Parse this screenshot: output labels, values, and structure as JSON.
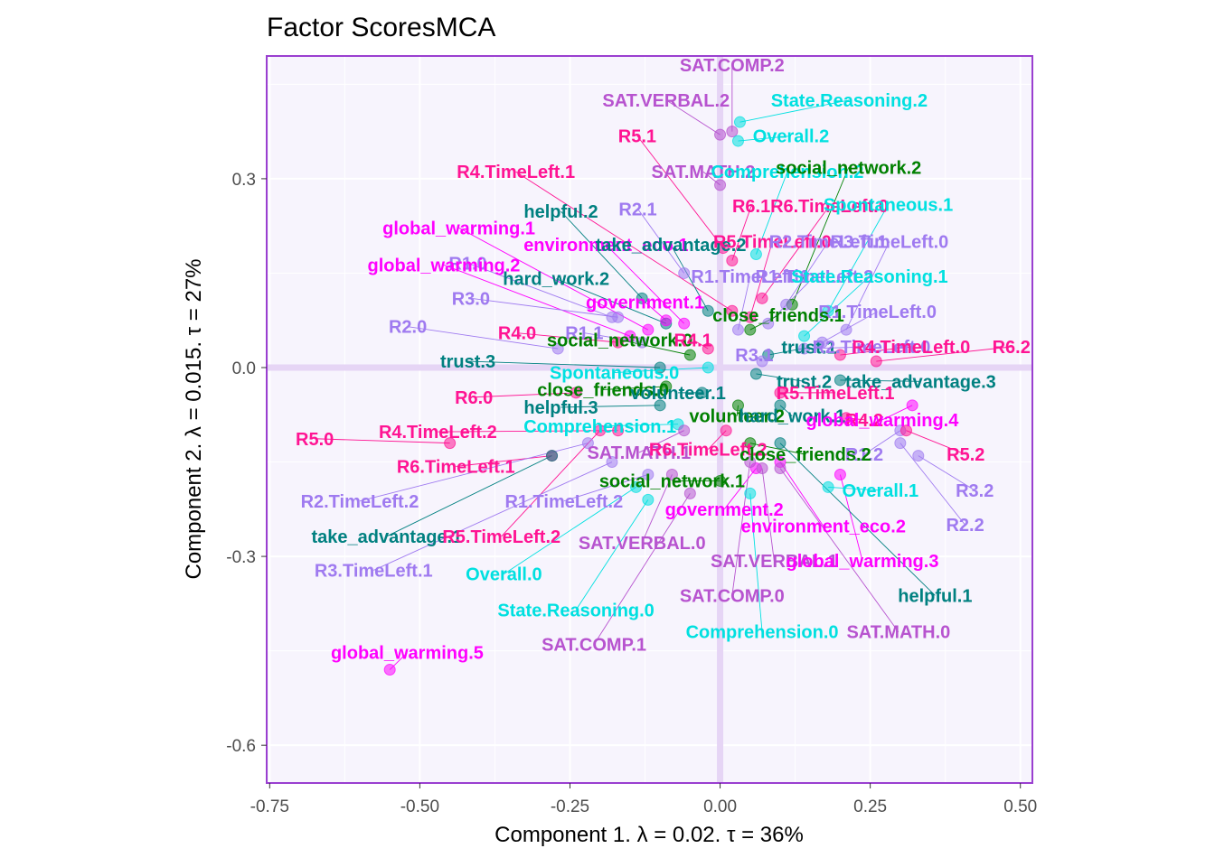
{
  "chart_data": {
    "type": "scatter",
    "title": "Factor ScoresMCA",
    "xlabel": "Component 1.   λ = 0.02.  τ = 36%",
    "ylabel": "Component 2.   λ = 0.015.  τ = 27%",
    "xlim": [
      -0.755,
      0.52
    ],
    "ylim": [
      -0.66,
      0.495
    ],
    "xticks": [
      -0.75,
      -0.5,
      -0.25,
      0.0,
      0.25,
      0.5
    ],
    "xtick_labels": [
      "-0.75",
      "-0.50",
      "-0.25",
      "0.00",
      "0.25",
      "0.50"
    ],
    "yticks": [
      0.3,
      0.0,
      -0.3,
      -0.6
    ],
    "ytick_labels": [
      "0.3",
      "0.0",
      "-0.3",
      "-0.6"
    ],
    "grid": true,
    "legend": "none",
    "colors": {
      "panel_bg": "#f7f4fd",
      "panel_border": "#9a3fd0",
      "grid": "#ffffff",
      "zero_line": "#e6d5f5",
      "sat": "#b753cf",
      "state": "#00e0e0",
      "r": "#ff1493",
      "rtl": "#9f7af0",
      "teal": "#008080",
      "green": "#008000",
      "mag": "#ff00ff"
    },
    "points": [
      {
        "label": "SAT.COMP.2",
        "x": 0.02,
        "y": 0.375,
        "lx": 0.02,
        "ly": 0.481,
        "c": "sat"
      },
      {
        "label": "SAT.VERBAL.2",
        "x": 0.0,
        "y": 0.37,
        "lx": -0.09,
        "ly": 0.425,
        "c": "sat"
      },
      {
        "label": "State.Reasoning.2",
        "x": 0.033,
        "y": 0.39,
        "lx": 0.215,
        "ly": 0.425,
        "c": "state"
      },
      {
        "label": "Overall.2",
        "x": 0.03,
        "y": 0.36,
        "lx": 0.118,
        "ly": 0.368,
        "c": "state"
      },
      {
        "label": "R5.1",
        "x": 0.005,
        "y": 0.19,
        "lx": -0.138,
        "ly": 0.368,
        "c": "r"
      },
      {
        "label": "R4.TimeLeft.1",
        "x": 0.02,
        "y": 0.09,
        "lx": -0.34,
        "ly": 0.311,
        "c": "r"
      },
      {
        "label": "SAT.MATH.2",
        "x": 0.0,
        "y": 0.29,
        "lx": -0.028,
        "ly": 0.311,
        "c": "sat"
      },
      {
        "label": "Comprehension.2",
        "x": 0.06,
        "y": 0.18,
        "lx": 0.112,
        "ly": 0.311,
        "c": "state"
      },
      {
        "label": "social_network.2",
        "x": 0.12,
        "y": 0.1,
        "lx": 0.214,
        "ly": 0.318,
        "c": "green"
      },
      {
        "label": "helpful.2",
        "x": -0.13,
        "y": 0.11,
        "lx": -0.265,
        "ly": 0.248,
        "c": "teal"
      },
      {
        "label": "R2.1",
        "x": -0.06,
        "y": 0.15,
        "lx": -0.137,
        "ly": 0.252,
        "c": "rtl"
      },
      {
        "label": "R6.1",
        "x": 0.02,
        "y": 0.17,
        "lx": 0.052,
        "ly": 0.257,
        "c": "r"
      },
      {
        "label": "R6.TimeLeft.0",
        "x": 0.07,
        "y": 0.11,
        "lx": 0.182,
        "ly": 0.257,
        "c": "r"
      },
      {
        "label": "Spontaneous.1",
        "x": 0.18,
        "y": 0.09,
        "lx": 0.28,
        "ly": 0.259,
        "c": "state"
      },
      {
        "label": "global_warming.1",
        "x": -0.12,
        "y": 0.06,
        "lx": -0.435,
        "ly": 0.222,
        "c": "mag"
      },
      {
        "label": "environment_eco.1",
        "x": -0.06,
        "y": 0.07,
        "lx": -0.19,
        "ly": 0.195,
        "c": "mag"
      },
      {
        "label": "take_advantage.2",
        "x": -0.02,
        "y": 0.09,
        "lx": -0.082,
        "ly": 0.195,
        "c": "teal"
      },
      {
        "label": "R5.TimeLeft.0",
        "x": 0.05,
        "y": 0.08,
        "lx": 0.087,
        "ly": 0.2,
        "c": "r"
      },
      {
        "label": "R2.TimeLeft.1",
        "x": 0.11,
        "y": 0.1,
        "lx": 0.18,
        "ly": 0.2,
        "c": "rtl"
      },
      {
        "label": "R3.TimeLeft.0",
        "x": 0.21,
        "y": 0.06,
        "lx": 0.282,
        "ly": 0.2,
        "c": "rtl"
      },
      {
        "label": "R1.0",
        "x": -0.18,
        "y": 0.08,
        "lx": -0.42,
        "ly": 0.166,
        "c": "rtl"
      },
      {
        "label": "global_warming.2",
        "x": -0.15,
        "y": 0.05,
        "lx": -0.46,
        "ly": 0.163,
        "c": "mag"
      },
      {
        "label": "R1.TimeLeft.1",
        "x": 0.03,
        "y": 0.06,
        "lx": 0.05,
        "ly": 0.145,
        "c": "rtl"
      },
      {
        "label": "R1.TimeLeft.2",
        "x": 0.08,
        "y": 0.07,
        "lx": 0.157,
        "ly": 0.145,
        "c": "rtl"
      },
      {
        "label": "State.Reasoning.1",
        "x": 0.14,
        "y": 0.05,
        "lx": 0.249,
        "ly": 0.145,
        "c": "state"
      },
      {
        "label": "hard_work.2",
        "x": -0.09,
        "y": 0.07,
        "lx": -0.273,
        "ly": 0.141,
        "c": "teal"
      },
      {
        "label": "R3.0",
        "x": -0.17,
        "y": 0.08,
        "lx": -0.415,
        "ly": 0.11,
        "c": "rtl"
      },
      {
        "label": "government.1",
        "x": -0.09,
        "y": 0.075,
        "lx": -0.125,
        "ly": 0.104,
        "c": "mag"
      },
      {
        "label": "R1.TimeLeft.0",
        "x": 0.17,
        "y": 0.04,
        "lx": 0.262,
        "ly": 0.089,
        "c": "rtl"
      },
      {
        "label": "close_friends.1",
        "x": 0.05,
        "y": 0.06,
        "lx": 0.097,
        "ly": 0.083,
        "c": "green"
      },
      {
        "label": "R2.0",
        "x": -0.27,
        "y": 0.03,
        "lx": -0.52,
        "ly": 0.065,
        "c": "rtl"
      },
      {
        "label": "R4.0",
        "x": -0.17,
        "y": 0.04,
        "lx": -0.338,
        "ly": 0.055,
        "c": "r"
      },
      {
        "label": "R1.1",
        "x": -0.13,
        "y": 0.04,
        "lx": -0.226,
        "ly": 0.055,
        "c": "rtl"
      },
      {
        "label": "social_network.0",
        "x": -0.05,
        "y": 0.02,
        "lx": -0.167,
        "ly": 0.044,
        "c": "green"
      },
      {
        "label": "R4.1",
        "x": -0.02,
        "y": 0.03,
        "lx": -0.045,
        "ly": 0.044,
        "c": "r"
      },
      {
        "label": "trust.1",
        "x": 0.08,
        "y": 0.02,
        "lx": 0.148,
        "ly": 0.032,
        "c": "teal"
      },
      {
        "label": "R2.TimeLeft.0",
        "x": 0.14,
        "y": 0.03,
        "lx": 0.252,
        "ly": 0.033,
        "c": "rtl"
      },
      {
        "label": "R4.TimeLeft.0",
        "x": 0.2,
        "y": 0.02,
        "lx": 0.318,
        "ly": 0.033,
        "c": "r"
      },
      {
        "label": "R6.2",
        "x": 0.26,
        "y": 0.01,
        "lx": 0.485,
        "ly": 0.033,
        "c": "r"
      },
      {
        "label": "R3.1",
        "x": 0.07,
        "y": 0.01,
        "lx": 0.057,
        "ly": 0.02,
        "c": "rtl"
      },
      {
        "label": "trust.3",
        "x": -0.1,
        "y": 0.0,
        "lx": -0.42,
        "ly": 0.01,
        "c": "teal"
      },
      {
        "label": "Spontaneous.0",
        "x": -0.02,
        "y": 0.0,
        "lx": -0.176,
        "ly": -0.008,
        "c": "state"
      },
      {
        "label": "trust.2",
        "x": 0.06,
        "y": -0.01,
        "lx": 0.14,
        "ly": -0.022,
        "c": "teal"
      },
      {
        "label": "take_advantage.3",
        "x": 0.2,
        "y": -0.02,
        "lx": 0.334,
        "ly": -0.022,
        "c": "teal"
      },
      {
        "label": "close_friends.0",
        "x": -0.09,
        "y": -0.03,
        "lx": -0.195,
        "ly": -0.035,
        "c": "green"
      },
      {
        "label": "volunteer.1",
        "x": -0.03,
        "y": -0.04,
        "lx": -0.07,
        "ly": -0.04,
        "c": "teal"
      },
      {
        "label": "R5.TimeLeft.1",
        "x": 0.1,
        "y": -0.04,
        "lx": 0.192,
        "ly": -0.04,
        "c": "r"
      },
      {
        "label": "R6.0",
        "x": -0.24,
        "y": -0.04,
        "lx": -0.41,
        "ly": -0.047,
        "c": "r"
      },
      {
        "label": "helpful.3",
        "x": -0.1,
        "y": -0.06,
        "lx": -0.265,
        "ly": -0.063,
        "c": "teal"
      },
      {
        "label": "volunteer.2",
        "x": 0.03,
        "y": -0.06,
        "lx": 0.028,
        "ly": -0.077,
        "c": "green"
      },
      {
        "label": "hard_work.1",
        "x": 0.1,
        "y": -0.06,
        "lx": 0.12,
        "ly": -0.077,
        "c": "teal"
      },
      {
        "label": "R4.2",
        "x": 0.21,
        "y": -0.08,
        "lx": 0.24,
        "ly": -0.083,
        "c": "r"
      },
      {
        "label": "global_warming.4",
        "x": 0.32,
        "y": -0.06,
        "lx": 0.27,
        "ly": -0.083,
        "c": "mag"
      },
      {
        "label": "Comprehension.1",
        "x": -0.07,
        "y": -0.09,
        "lx": -0.2,
        "ly": -0.093,
        "c": "state"
      },
      {
        "label": "R5.0",
        "x": -0.45,
        "y": -0.12,
        "lx": -0.675,
        "ly": -0.113,
        "c": "r"
      },
      {
        "label": "R4.TimeLeft.2",
        "x": -0.17,
        "y": -0.1,
        "lx": -0.47,
        "ly": -0.102,
        "c": "r"
      },
      {
        "label": "R1.2",
        "x": 0.3,
        "y": -0.1,
        "lx": 0.24,
        "ly": -0.138,
        "c": "rtl"
      },
      {
        "label": "R5.2",
        "x": 0.31,
        "y": -0.1,
        "lx": 0.409,
        "ly": -0.138,
        "c": "r"
      },
      {
        "label": "SAT.MATH.1",
        "x": -0.06,
        "y": -0.1,
        "lx": -0.135,
        "ly": -0.135,
        "c": "sat"
      },
      {
        "label": "R6.TimeLeft.2",
        "x": 0.01,
        "y": -0.1,
        "lx": -0.02,
        "ly": -0.13,
        "c": "r"
      },
      {
        "label": "close_friends.2",
        "x": 0.05,
        "y": -0.12,
        "lx": 0.142,
        "ly": -0.138,
        "c": "green"
      },
      {
        "label": "R3.2",
        "x": 0.33,
        "y": -0.14,
        "lx": 0.424,
        "ly": -0.195,
        "c": "rtl"
      },
      {
        "label": "R6.TimeLeft.1",
        "x": -0.28,
        "y": -0.14,
        "lx": -0.44,
        "ly": -0.157,
        "c": "r"
      },
      {
        "label": "Overall.1",
        "x": 0.18,
        "y": -0.19,
        "lx": 0.267,
        "ly": -0.195,
        "c": "state"
      },
      {
        "label": "social_network.1",
        "x": 0.0,
        "y": -0.18,
        "lx": -0.08,
        "ly": -0.18,
        "c": "green"
      },
      {
        "label": "R2.TimeLeft.2",
        "x": -0.22,
        "y": -0.12,
        "lx": -0.6,
        "ly": -0.212,
        "c": "rtl"
      },
      {
        "label": "R1.TimeLeft.2",
        "x": -0.12,
        "y": -0.17,
        "lx": -0.26,
        "ly": -0.212,
        "c": "rtl"
      },
      {
        "label": "government.2",
        "x": 0.06,
        "y": -0.16,
        "lx": 0.007,
        "ly": -0.225,
        "c": "mag"
      },
      {
        "label": "R2.2",
        "x": 0.3,
        "y": -0.12,
        "lx": 0.408,
        "ly": -0.25,
        "c": "rtl"
      },
      {
        "label": "environment_eco.2",
        "x": 0.1,
        "y": -0.15,
        "lx": 0.172,
        "ly": -0.252,
        "c": "mag"
      },
      {
        "label": "take_advantage.1",
        "x": -0.28,
        "y": -0.14,
        "lx": -0.555,
        "ly": -0.268,
        "c": "teal"
      },
      {
        "label": "R5.TimeLeft.2",
        "x": -0.2,
        "y": -0.1,
        "lx": -0.364,
        "ly": -0.268,
        "c": "r"
      },
      {
        "label": "SAT.VERBAL.0",
        "x": -0.08,
        "y": -0.17,
        "lx": -0.13,
        "ly": -0.278,
        "c": "sat"
      },
      {
        "label": "R3.TimeLeft.1",
        "x": -0.18,
        "y": -0.15,
        "lx": -0.577,
        "ly": -0.322,
        "c": "rtl"
      },
      {
        "label": "Overall.0",
        "x": -0.14,
        "y": -0.19,
        "lx": -0.36,
        "ly": -0.328,
        "c": "state"
      },
      {
        "label": "SAT.VERBAL.1",
        "x": 0.07,
        "y": -0.16,
        "lx": 0.09,
        "ly": -0.307,
        "c": "sat"
      },
      {
        "label": "global_warming.3",
        "x": 0.2,
        "y": -0.17,
        "lx": 0.237,
        "ly": -0.307,
        "c": "mag"
      },
      {
        "label": "helpful.1",
        "x": 0.1,
        "y": -0.12,
        "lx": 0.358,
        "ly": -0.362,
        "c": "teal"
      },
      {
        "label": "State.Reasoning.0",
        "x": -0.12,
        "y": -0.21,
        "lx": -0.24,
        "ly": -0.385,
        "c": "state"
      },
      {
        "label": "SAT.COMP.0",
        "x": 0.05,
        "y": -0.15,
        "lx": 0.02,
        "ly": -0.362,
        "c": "sat"
      },
      {
        "label": "SAT.MATH.0",
        "x": 0.1,
        "y": -0.16,
        "lx": 0.297,
        "ly": -0.42,
        "c": "sat"
      },
      {
        "label": "Comprehension.0",
        "x": 0.05,
        "y": -0.2,
        "lx": 0.07,
        "ly": -0.42,
        "c": "state"
      },
      {
        "label": "SAT.COMP.1",
        "x": -0.05,
        "y": -0.2,
        "lx": -0.21,
        "ly": -0.44,
        "c": "sat"
      },
      {
        "label": "global_warming.5",
        "x": -0.55,
        "y": -0.48,
        "lx": -0.521,
        "ly": -0.453,
        "c": "mag"
      }
    ]
  }
}
